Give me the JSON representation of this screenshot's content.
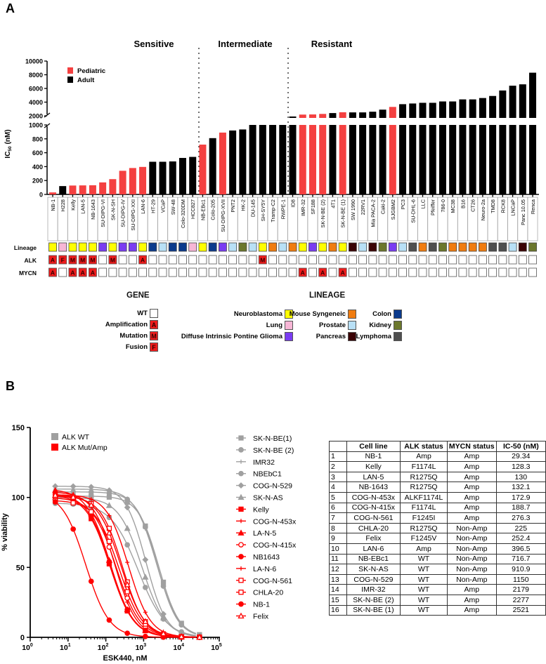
{
  "panels": {
    "a": "A",
    "b": "B"
  },
  "chart_data": [
    {
      "type": "bar",
      "title": "",
      "ylabel": {
        "main": "IC",
        "sub": "50",
        "unit": " (nM)"
      },
      "ylim": [
        0,
        10000
      ],
      "axis_break": [
        1000,
        2000
      ],
      "yticks_lower": [
        "0",
        "200",
        "400",
        "600",
        "800",
        "1000"
      ],
      "yticks_upper": [
        "2000",
        "4000",
        "6000",
        "8000",
        "10000"
      ],
      "sections": [
        "Sensitive",
        "Intermediate",
        "Resistant"
      ],
      "legend": [
        {
          "label": "Pediatric",
          "color": "#f44040"
        },
        {
          "label": "Adult",
          "color": "#000000"
        }
      ],
      "categories": [
        "NB-1",
        "H228",
        "Kelly",
        "LAN-5",
        "NB-1643",
        "SU-DIPG-VI",
        "SK-N-SH",
        "SU-DIPG-IV",
        "SU-DIPG-XXI",
        "LAN-6",
        "HT-29",
        "VCaP",
        "SW-48",
        "Colo-320DM",
        "HCC827",
        "NB-EBc1",
        "Colo-205",
        "SU-DIPG-XVII",
        "PNT2",
        "HK-2",
        "DU-145",
        "SH-SY5Y",
        "Tramp-C2",
        "RWPE-1",
        "ID8",
        "IMR-32",
        "SF188",
        "SK-N-BE (2)",
        "4T1",
        "SK-N-BE (1)",
        "SW 1990",
        "22RV1",
        "Mia PACA-2",
        "Caki-2",
        "SJGBM2",
        "PC3",
        "SU-DHL-6",
        "LLC",
        "Pfeiffer",
        "786-0",
        "MC38",
        "B16",
        "CT26",
        "Neuro-2a",
        "TMD8",
        "RCK8",
        "LNCaP",
        "Panc 10.05",
        "Renca"
      ],
      "values": [
        29,
        120,
        128,
        130,
        132,
        173,
        220,
        340,
        380,
        396,
        470,
        470,
        475,
        525,
        540,
        717,
        810,
        890,
        920,
        935,
        1000,
        1000,
        1000,
        1000,
        1900,
        2179,
        2200,
        2277,
        2400,
        2521,
        2500,
        2500,
        2600,
        2900,
        3300,
        3700,
        3800,
        3900,
        3900,
        4100,
        4100,
        4400,
        4400,
        4600,
        4900,
        5700,
        6400,
        6600,
        8300
      ],
      "group": [
        "P",
        "A",
        "P",
        "P",
        "P",
        "P",
        "P",
        "P",
        "P",
        "P",
        "A",
        "A",
        "A",
        "A",
        "A",
        "P",
        "A",
        "P",
        "A",
        "A",
        "A",
        "A",
        "A",
        "A",
        "A",
        "P",
        "P",
        "P",
        "A",
        "P",
        "A",
        "A",
        "A",
        "A",
        "P",
        "A",
        "A",
        "A",
        "A",
        "A",
        "A",
        "A",
        "A",
        "A",
        "A",
        "A",
        "A",
        "A",
        "A"
      ],
      "section_of": [
        0,
        0,
        0,
        0,
        0,
        0,
        0,
        0,
        0,
        0,
        0,
        0,
        0,
        0,
        0,
        1,
        1,
        1,
        1,
        1,
        1,
        1,
        1,
        1,
        2,
        2,
        2,
        2,
        2,
        2,
        2,
        2,
        2,
        2,
        2,
        2,
        2,
        2,
        2,
        2,
        2,
        2,
        2,
        2,
        2,
        2,
        2,
        2,
        2
      ],
      "rows": {
        "lineage": "Lineage",
        "alk": "ALK",
        "mycn": "MYCN"
      },
      "lineage": [
        "Neuroblastoma",
        "Lung",
        "Neuroblastoma",
        "Neuroblastoma",
        "Neuroblastoma",
        "Diffuse Intrinsic Pontine Glioma",
        "Neuroblastoma",
        "Diffuse Intrinsic Pontine Glioma",
        "Diffuse Intrinsic Pontine Glioma",
        "Neuroblastoma",
        "Colon",
        "Prostate",
        "Colon",
        "Colon",
        "Lung",
        "Neuroblastoma",
        "Colon",
        "Diffuse Intrinsic Pontine Glioma",
        "Prostate",
        "Kidney",
        "Prostate",
        "Neuroblastoma",
        "Mouse Syngeneic",
        "Prostate",
        "Mouse Syngeneic",
        "Neuroblastoma",
        "Diffuse Intrinsic Pontine Glioma",
        "Neuroblastoma",
        "Mouse Syngeneic",
        "Neuroblastoma",
        "Pancreas",
        "Prostate",
        "Pancreas",
        "Kidney",
        "Diffuse Intrinsic Pontine Glioma",
        "Prostate",
        "Lymphoma",
        "Mouse Syngeneic",
        "Lymphoma",
        "Kidney",
        "Mouse Syngeneic",
        "Mouse Syngeneic",
        "Mouse Syngeneic",
        "Mouse Syngeneic",
        "Lymphoma",
        "Lymphoma",
        "Prostate",
        "Pancreas",
        "Kidney"
      ],
      "alk": [
        "A",
        "F",
        "M",
        "M",
        "M",
        "",
        "M",
        "",
        "",
        "A",
        "",
        "",
        "",
        "",
        "",
        "",
        "",
        "",
        "",
        "",
        "",
        "M",
        "",
        "",
        "",
        "",
        "",
        "",
        "",
        "",
        "",
        "",
        "",
        "",
        "",
        "",
        "",
        "",
        "",
        "",
        "",
        "",
        "",
        "",
        "",
        "",
        "",
        "",
        ""
      ],
      "mycn": [
        "A",
        "",
        "A",
        "A",
        "A",
        "",
        "",
        "",
        "",
        "",
        "",
        "",
        "",
        "",
        "",
        "",
        "",
        "",
        "",
        "",
        "",
        "",
        "",
        "",
        "",
        "A",
        "",
        "A",
        "",
        "A",
        "",
        "",
        "",
        "",
        "",
        "",
        "",
        "",
        "",
        "",
        "",
        "",
        "",
        "",
        "",
        "",
        "",
        "",
        ""
      ],
      "gene_legend": {
        "title": "GENE",
        "items": [
          {
            "label": "WT",
            "code": ""
          },
          {
            "label": "Amplification",
            "code": "A"
          },
          {
            "label": "Mutation",
            "code": "M"
          },
          {
            "label": "Fusion",
            "code": "F"
          }
        ]
      },
      "lineage_legend": {
        "title": "LINEAGE",
        "items": [
          {
            "label": "Neuroblastoma",
            "color": "#ffff00"
          },
          {
            "label": "Lung",
            "color": "#f7b6d6"
          },
          {
            "label": "Diffuse Intrinsic Pontine Glioma",
            "color": "#7a3cf2"
          },
          {
            "label": "Mouse Syngeneic",
            "color": "#f07c10"
          },
          {
            "label": "Prostate",
            "color": "#b8e0f6"
          },
          {
            "label": "Pancreas",
            "color": "#3a0204"
          },
          {
            "label": "Colon",
            "color": "#0b3a8c"
          },
          {
            "label": "Kidney",
            "color": "#6b772c"
          },
          {
            "label": "Lymphoma",
            "color": "#4f4f4f"
          }
        ]
      }
    },
    {
      "type": "line",
      "xlabel": "ESK440, nM",
      "ylabel": "% viability",
      "xscale": "log",
      "xlim": [
        1,
        100000
      ],
      "ylim": [
        0,
        150
      ],
      "yticks": [
        "0",
        "50",
        "100",
        "150"
      ],
      "xticks": [
        {
          "base": "10",
          "exp": "0"
        },
        {
          "base": "10",
          "exp": "1"
        },
        {
          "base": "10",
          "exp": "2"
        },
        {
          "base": "10",
          "exp": "3"
        },
        {
          "base": "10",
          "exp": "4"
        },
        {
          "base": "10",
          "exp": "5"
        }
      ],
      "group_legend": [
        {
          "label": "ALK WT",
          "color": "#a0a0a0"
        },
        {
          "label": "ALK Mut/Amp",
          "color": "#ff0000"
        }
      ],
      "doses": [
        4.6,
        13.7,
        41,
        123,
        370,
        1111,
        3333,
        10000,
        30000
      ],
      "series": [
        {
          "name": "SK-N-BE(1)",
          "group": "WT",
          "ic50": 2521,
          "top": 101,
          "hill": 1.6,
          "marker": "square"
        },
        {
          "name": "SK-N-BE (2)",
          "group": "WT",
          "ic50": 2277,
          "top": 104,
          "hill": 1.6,
          "marker": "circle"
        },
        {
          "name": "IMR32",
          "group": "WT",
          "ic50": 2179,
          "top": 106,
          "hill": 1.5,
          "marker": "plus"
        },
        {
          "name": "NBEbC1",
          "group": "WT",
          "ic50": 716.7,
          "top": 96,
          "hill": 1.2,
          "marker": "circle"
        },
        {
          "name": "COG-N-529",
          "group": "WT",
          "ic50": 1150,
          "top": 108,
          "hill": 1.6,
          "marker": "diamond"
        },
        {
          "name": "SK-N-AS",
          "group": "WT",
          "ic50": 910.9,
          "top": 100,
          "hill": 1.4,
          "marker": "triangle"
        },
        {
          "name": "Kelly",
          "group": "Mut",
          "ic50": 128.3,
          "top": 102,
          "hill": 1.4,
          "marker": "square"
        },
        {
          "name": "COG-N-453x",
          "group": "Mut",
          "ic50": 172.9,
          "top": 104,
          "hill": 1.5,
          "marker": "plus"
        },
        {
          "name": "LA-N-5",
          "group": "Mut",
          "ic50": 130,
          "top": 106,
          "hill": 1.4,
          "marker": "triangle"
        },
        {
          "name": "COG-N-415x",
          "group": "Mut",
          "ic50": 188.7,
          "top": 100,
          "hill": 1.4,
          "marker": "circle-open"
        },
        {
          "name": "NB1643",
          "group": "Mut",
          "ic50": 132.1,
          "top": 103,
          "hill": 1.4,
          "marker": "circle"
        },
        {
          "name": "LA-N-6",
          "group": "Mut",
          "ic50": 396.5,
          "top": 102,
          "hill": 1.5,
          "marker": "plus"
        },
        {
          "name": "COG-N-561",
          "group": "Mut",
          "ic50": 276.3,
          "top": 101,
          "hill": 1.5,
          "marker": "square-open"
        },
        {
          "name": "CHLA-20",
          "group": "Mut",
          "ic50": 225,
          "top": 98,
          "hill": 1.4,
          "marker": "square-open"
        },
        {
          "name": "NB-1",
          "group": "Mut",
          "ic50": 29.34,
          "top": 104,
          "hill": 1.4,
          "marker": "circle"
        },
        {
          "name": "Felix",
          "group": "Mut",
          "ic50": 252.4,
          "top": 102,
          "hill": 1.4,
          "marker": "triangle-open"
        }
      ]
    }
  ],
  "table": {
    "headers": [
      "",
      "Cell line",
      "ALK status",
      "MYCN status",
      "IC-50 (nM)"
    ],
    "rows": [
      [
        "1",
        "NB-1",
        "Amp",
        "Amp",
        "29.34"
      ],
      [
        "2",
        "Kelly",
        "F1174L",
        "Amp",
        "128.3"
      ],
      [
        "3",
        "LAN-5",
        "R1275Q",
        "Amp",
        "130"
      ],
      [
        "4",
        "NB-1643",
        "R1275Q",
        "Amp",
        "132.1"
      ],
      [
        "5",
        "COG-N-453x",
        "ALKF1174L",
        "Amp",
        "172.9"
      ],
      [
        "6",
        "COG-N-415x",
        "F1174L",
        "Amp",
        "188.7"
      ],
      [
        "7",
        "COG-N-561",
        "F1245I",
        "Amp",
        "276.3"
      ],
      [
        "8",
        "CHLA-20",
        "R1275Q",
        "Non-Amp",
        "225"
      ],
      [
        "9",
        "Felix",
        "F1245V",
        "Non-Amp",
        "252.4"
      ],
      [
        "10",
        "LAN-6",
        "Amp",
        "Non-Amp",
        "396.5"
      ],
      [
        "11",
        "NB-EBc1",
        "WT",
        "Non-Amp",
        "716.7"
      ],
      [
        "12",
        "SK-N-AS",
        "WT",
        "Non-Amp",
        "910.9"
      ],
      [
        "13",
        "COG-N-529",
        "WT",
        "Non-Amp",
        "1150"
      ],
      [
        "14",
        "IMR-32",
        "WT",
        "Amp",
        "2179"
      ],
      [
        "15",
        "SK-N-BE (2)",
        "WT",
        "Amp",
        "2277"
      ],
      [
        "16",
        "SK-N-BE (1)",
        "WT",
        "Amp",
        "2521"
      ]
    ]
  }
}
